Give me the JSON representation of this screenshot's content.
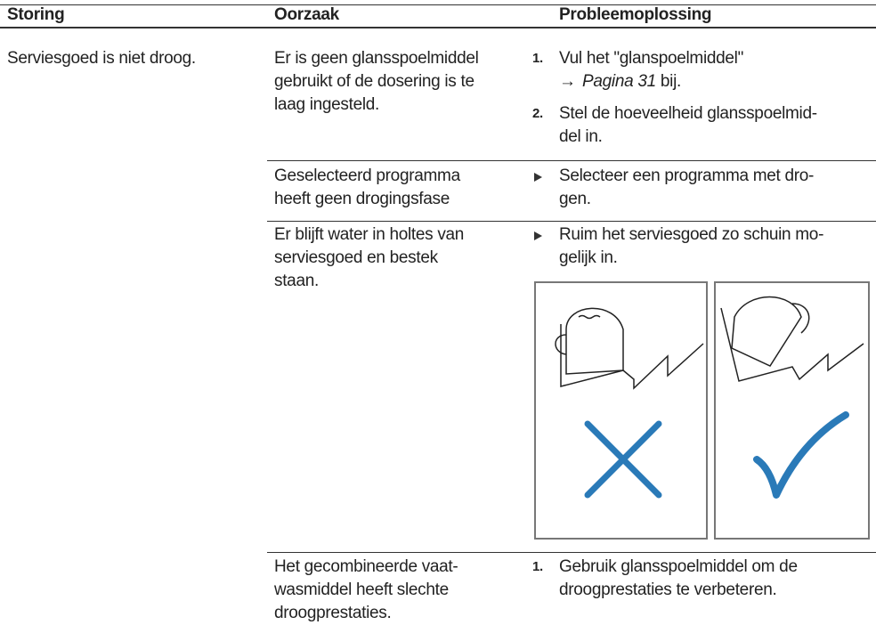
{
  "table": {
    "headers": [
      "Storing",
      "Oorzaak",
      "Probleemoplossing"
    ],
    "rows": [
      {
        "storing": [
          "Serviesgoed is niet droog."
        ],
        "oorzaak": [
          "Er is geen glansspoelmiddel",
          "gebruikt of de dosering is te",
          "laag ingesteld."
        ],
        "oplossing": [
          {
            "marker": "1.",
            "lines": [
              "Vul het \"glanspoelmiddel\""
            ],
            "link": {
              "arrow": "→",
              "text": "Pagina 31",
              "suffix": "bij."
            }
          },
          {
            "marker": "2.",
            "lines": [
              "Stel de hoeveelheid glansspoelmid-",
              "del in."
            ]
          }
        ]
      },
      {
        "oorzaak": [
          "Geselecteerd programma",
          "heeft geen drogingsfase"
        ],
        "oplossing": [
          {
            "lines": [
              "Selecteer een programma met dro-",
              "gen."
            ]
          }
        ]
      },
      {
        "oorzaak": [
          "Er blijft water in holtes van",
          "serviesgoed en bestek",
          "staan."
        ],
        "oplossing": [
          {
            "lines": [
              "Ruim het serviesgoed zo schuin mo-",
              "gelijk in."
            ]
          }
        ]
      },
      {
        "oorzaak": [
          "Het gecombineerde vaat-",
          "wasmiddel heeft slechte",
          "droogprestaties."
        ],
        "oplossing": [
          {
            "marker": "1.",
            "lines": [
              "Gebruik glansspoelmiddel om de",
              "droogprestaties te verbeteren."
            ]
          }
        ]
      }
    ]
  }
}
